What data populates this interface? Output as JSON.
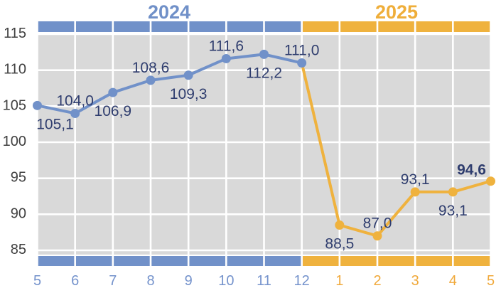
{
  "chart_data": {
    "type": "line",
    "title": "",
    "decimal_separator": ",",
    "y_axis": {
      "min": 85,
      "max": 115,
      "tick_step": 5,
      "ticks": [
        "115",
        "110",
        "105",
        "100",
        "95",
        "90",
        "85"
      ],
      "tick_values": [
        115,
        110,
        105,
        100,
        95,
        90,
        85
      ]
    },
    "x_axis": {
      "tick_labels": [
        "5",
        "6",
        "7",
        "8",
        "9",
        "10",
        "11",
        "12",
        "1",
        "2",
        "3",
        "4",
        "5"
      ],
      "tick_groups": [
        0,
        0,
        0,
        0,
        0,
        0,
        0,
        0,
        1,
        1,
        1,
        1,
        1
      ]
    },
    "year_groups": [
      {
        "label": "2024",
        "text_color": "#7090C8",
        "band_color": "#7191C9",
        "tick_color": "#7593CC",
        "month_count": 8
      },
      {
        "label": "2025",
        "text_color": "#EFAE3A",
        "band_color": "#EFB23E",
        "tick_color": "#F0A93B",
        "month_count": 5
      }
    ],
    "grid": {
      "background": "#D9D9D9",
      "line_color": "#FFFFFF"
    },
    "series": [
      {
        "name": "2024",
        "color": "#7191C9",
        "points": [
          {
            "x_index": 0,
            "month": "5",
            "value": 105.1,
            "label": "105,1",
            "label_pos": "below-right",
            "bold": false
          },
          {
            "x_index": 1,
            "month": "6",
            "value": 104.0,
            "label": "104,0",
            "label_pos": "above",
            "bold": false
          },
          {
            "x_index": 2,
            "month": "7",
            "value": 106.9,
            "label": "106,9",
            "label_pos": "below",
            "bold": false
          },
          {
            "x_index": 3,
            "month": "8",
            "value": 108.6,
            "label": "108,6",
            "label_pos": "above",
            "bold": false
          },
          {
            "x_index": 4,
            "month": "9",
            "value": 109.3,
            "label": "109,3",
            "label_pos": "below",
            "bold": false
          },
          {
            "x_index": 5,
            "month": "10",
            "value": 111.6,
            "label": "111,6",
            "label_pos": "above",
            "bold": false
          },
          {
            "x_index": 6,
            "month": "11",
            "value": 112.2,
            "label": "112,2",
            "label_pos": "below",
            "bold": false
          },
          {
            "x_index": 7,
            "month": "12",
            "value": 111.0,
            "label": "111,0",
            "label_pos": "above",
            "bold": false
          }
        ]
      },
      {
        "name": "2025",
        "color": "#EFB23E",
        "starts_at": {
          "x_index": 7,
          "month": "12",
          "value": 111.0
        },
        "points": [
          {
            "x_index": 8,
            "month": "1",
            "value": 88.5,
            "label": "88,5",
            "label_pos": "below",
            "bold": false
          },
          {
            "x_index": 9,
            "month": "2",
            "value": 87.0,
            "label": "87,0",
            "label_pos": "above",
            "bold": false
          },
          {
            "x_index": 10,
            "month": "3",
            "value": 93.1,
            "label": "93,1",
            "label_pos": "above",
            "bold": false
          },
          {
            "x_index": 11,
            "month": "4",
            "value": 93.1,
            "label": "93,1",
            "label_pos": "below",
            "bold": false
          },
          {
            "x_index": 12,
            "month": "5",
            "value": 94.6,
            "label": "94,6",
            "label_pos": "above-left",
            "bold": true
          }
        ]
      }
    ],
    "label_color": "#2F3D6E",
    "y_tick_color": "#404040",
    "legend": "none"
  }
}
